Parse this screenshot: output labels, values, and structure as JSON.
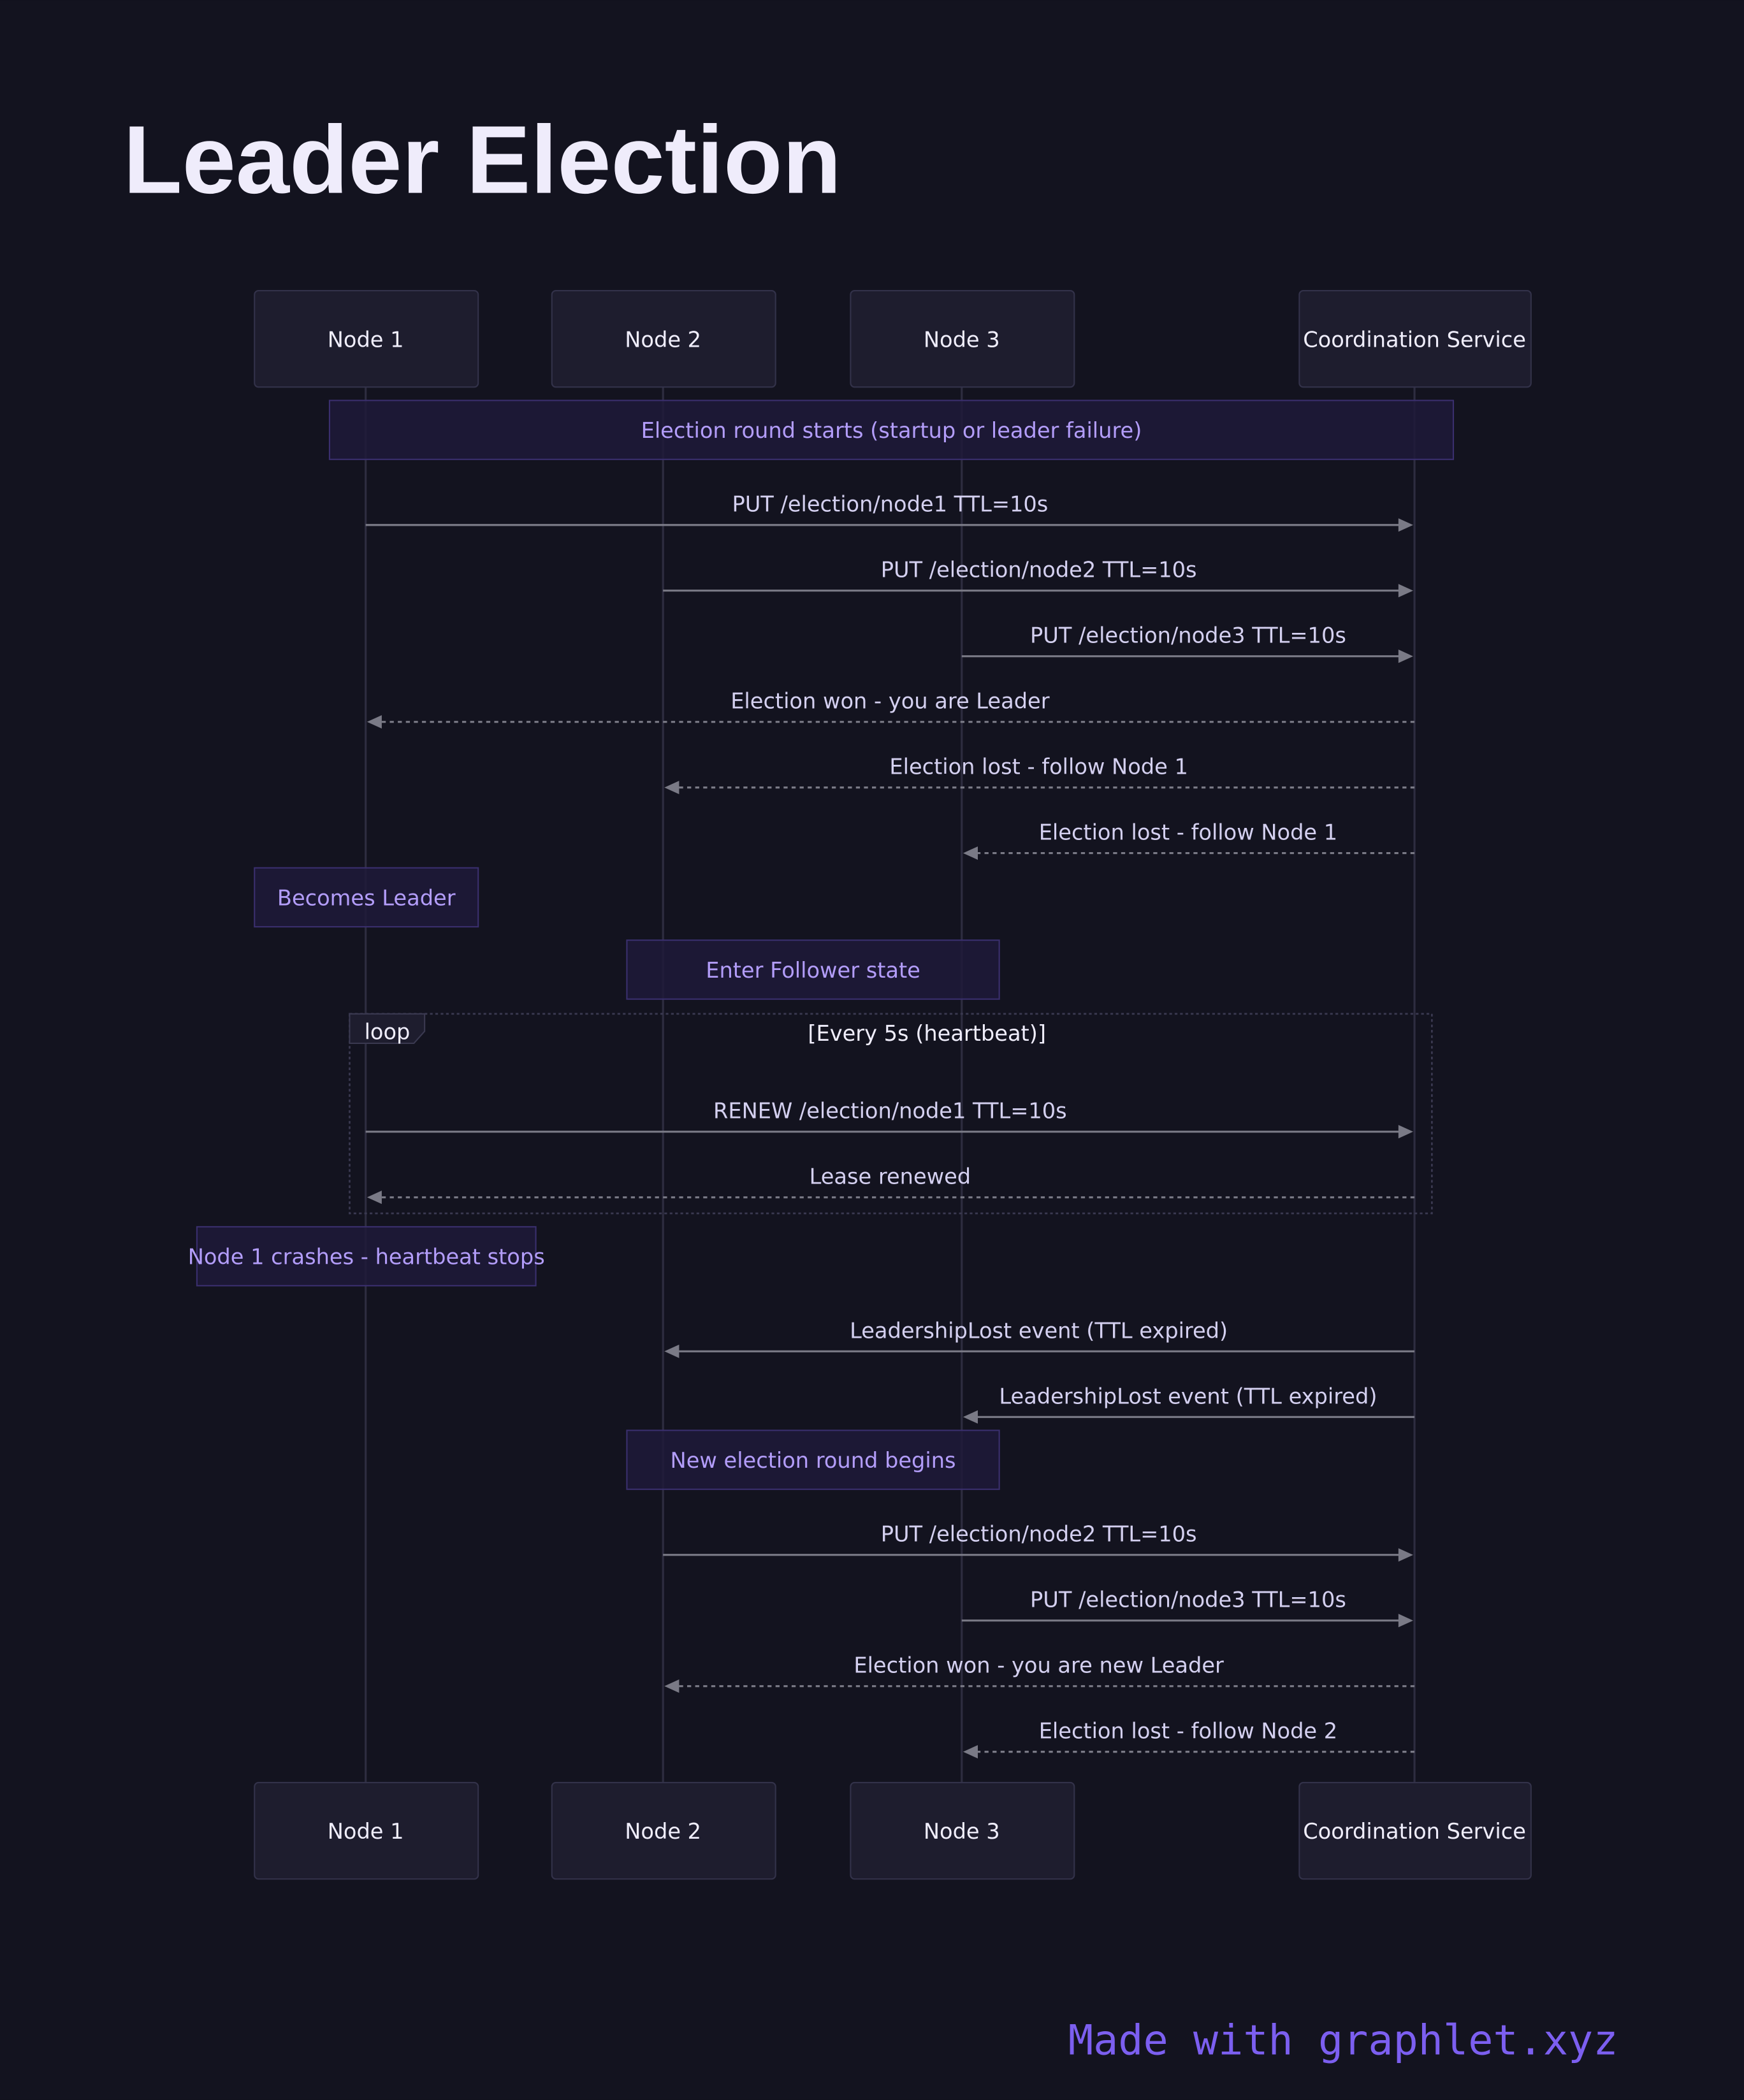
{
  "title": "Leader Election",
  "participants": [
    "Node 1",
    "Node 2",
    "Node 3",
    "Coordination Service"
  ],
  "loop": {
    "label": "loop",
    "condition": "[Every 5s (heartbeat)]"
  },
  "steps": [
    {
      "type": "note",
      "text": "Election round starts (startup or leader failure)",
      "over": [
        0,
        3
      ]
    },
    {
      "type": "message",
      "from": 0,
      "to": 3,
      "text": "PUT /election/node1 TTL=10s",
      "style": "solid"
    },
    {
      "type": "message",
      "from": 1,
      "to": 3,
      "text": "PUT /election/node2 TTL=10s",
      "style": "solid"
    },
    {
      "type": "message",
      "from": 2,
      "to": 3,
      "text": "PUT /election/node3 TTL=10s",
      "style": "solid"
    },
    {
      "type": "message",
      "from": 3,
      "to": 0,
      "text": "Election won - you are Leader",
      "style": "dashed"
    },
    {
      "type": "message",
      "from": 3,
      "to": 1,
      "text": "Election lost - follow Node 1",
      "style": "dashed"
    },
    {
      "type": "message",
      "from": 3,
      "to": 2,
      "text": "Election lost - follow Node 1",
      "style": "dashed"
    },
    {
      "type": "note",
      "text": "Becomes Leader",
      "over": [
        0
      ]
    },
    {
      "type": "note",
      "text": "Enter Follower state",
      "over": [
        1,
        2
      ]
    },
    {
      "type": "message",
      "from": 0,
      "to": 3,
      "text": "RENEW /election/node1 TTL=10s",
      "style": "solid",
      "in_loop": true
    },
    {
      "type": "message",
      "from": 3,
      "to": 0,
      "text": "Lease renewed",
      "style": "dashed",
      "in_loop": true
    },
    {
      "type": "note",
      "text": "Node 1 crashes - heartbeat stops",
      "over": [
        0
      ]
    },
    {
      "type": "message",
      "from": 3,
      "to": 1,
      "text": "LeadershipLost event (TTL expired)",
      "style": "solid"
    },
    {
      "type": "message",
      "from": 3,
      "to": 2,
      "text": "LeadershipLost event (TTL expired)",
      "style": "solid"
    },
    {
      "type": "note",
      "text": "New election round begins",
      "over": [
        1,
        2
      ]
    },
    {
      "type": "message",
      "from": 1,
      "to": 3,
      "text": "PUT /election/node2 TTL=10s",
      "style": "solid"
    },
    {
      "type": "message",
      "from": 2,
      "to": 3,
      "text": "PUT /election/node3 TTL=10s",
      "style": "solid"
    },
    {
      "type": "message",
      "from": 3,
      "to": 1,
      "text": "Election won - you are new Leader",
      "style": "dashed"
    },
    {
      "type": "message",
      "from": 3,
      "to": 2,
      "text": "Election lost - follow Node 2",
      "style": "dashed"
    }
  ],
  "footer": "Made with graphlet.xyz",
  "colors": {
    "background": "#13131f",
    "note_text": "#b39dfa",
    "footer": "#7c5ff0"
  }
}
